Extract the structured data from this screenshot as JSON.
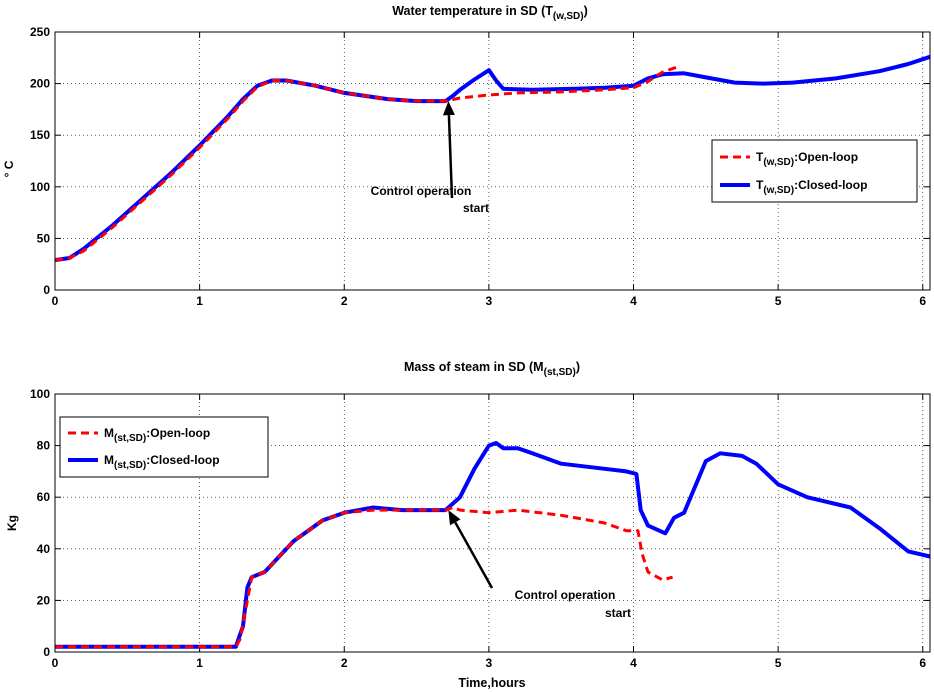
{
  "chart_data": [
    {
      "type": "line",
      "title": "Water temperature in SD (T",
      "title_sub": "(w,SD)",
      "title_end": ")",
      "xlabel": "",
      "ylabel": "° C",
      "xlim": [
        0,
        6.05
      ],
      "ylim": [
        0,
        250
      ],
      "xticks": [
        0,
        1,
        2,
        3,
        4,
        5,
        6
      ],
      "yticks": [
        0,
        50,
        100,
        150,
        200,
        250
      ],
      "grid": true,
      "legend_position": "right",
      "series": [
        {
          "name": "T",
          "name_sub": "(w,SD)",
          "name_rest": ":Open-loop",
          "color": "#ff0000",
          "style": "dashed",
          "x": [
            0,
            0.1,
            0.2,
            0.4,
            0.6,
            0.8,
            1.0,
            1.2,
            1.3,
            1.4,
            1.5,
            1.6,
            1.8,
            2.0,
            2.3,
            2.5,
            2.7,
            2.8,
            3.0,
            3.2,
            3.5,
            3.8,
            4.0,
            4.1,
            4.2,
            4.3
          ],
          "y": [
            29,
            31,
            38,
            61,
            86,
            111,
            138,
            167,
            183,
            197,
            203,
            203,
            198,
            191,
            185,
            183,
            183,
            186,
            189,
            191,
            192,
            194,
            196,
            202,
            211,
            216
          ]
        },
        {
          "name": "T",
          "name_sub": "(w,SD)",
          "name_rest": ":Closed-loop",
          "color": "#0000ff",
          "style": "solid",
          "x": [
            0,
            0.1,
            0.2,
            0.4,
            0.6,
            0.8,
            1.0,
            1.2,
            1.3,
            1.4,
            1.5,
            1.6,
            1.8,
            2.0,
            2.3,
            2.5,
            2.7,
            2.75,
            2.8,
            2.9,
            3.0,
            3.05,
            3.1,
            3.3,
            3.6,
            3.8,
            4.0,
            4.1,
            4.2,
            4.35,
            4.5,
            4.7,
            4.9,
            5.1,
            5.4,
            5.7,
            5.9,
            6.05
          ],
          "y": [
            29,
            31,
            40,
            63,
            88,
            113,
            140,
            169,
            185,
            198,
            203,
            203,
            198,
            191,
            185,
            183,
            183,
            188,
            194,
            204,
            213,
            203,
            195,
            194,
            195,
            196,
            198,
            205,
            209,
            210,
            206,
            201,
            200,
            201,
            205,
            212,
            219,
            226
          ]
        }
      ],
      "annotation": {
        "lines": [
          "Control operation",
          "start"
        ],
        "arrow_tip": [
          2.72,
          183
        ]
      }
    },
    {
      "type": "line",
      "title": "Mass of steam in SD (M",
      "title_sub": "(st,SD)",
      "title_end": ")",
      "xlabel": "Time,hours",
      "ylabel": "Kg",
      "xlim": [
        0,
        6.05
      ],
      "ylim": [
        0,
        100
      ],
      "xticks": [
        0,
        1,
        2,
        3,
        4,
        5,
        6
      ],
      "yticks": [
        0,
        20,
        40,
        60,
        80,
        100
      ],
      "grid": true,
      "legend_position": "top-left",
      "series": [
        {
          "name": "M",
          "name_sub": "(st,SD)",
          "name_rest": ":Open-loop",
          "color": "#ff0000",
          "style": "dashed",
          "x": [
            0,
            1.25,
            1.28,
            1.33,
            1.36,
            1.45,
            1.55,
            1.65,
            1.75,
            1.85,
            2.0,
            2.2,
            2.4,
            2.6,
            2.7,
            2.75,
            2.8,
            3.0,
            3.2,
            3.5,
            3.8,
            3.95,
            4.03,
            4.06,
            4.1,
            4.2,
            4.27
          ],
          "y": [
            2,
            2,
            5,
            20,
            29,
            31,
            37,
            43,
            47,
            51,
            54,
            55,
            55,
            55,
            55,
            56,
            55,
            54,
            55,
            53,
            50,
            47,
            47,
            38,
            31,
            28,
            29
          ]
        },
        {
          "name": "M",
          "name_sub": "(st,SD)",
          "name_rest": ":Closed-loop",
          "color": "#0000ff",
          "style": "solid",
          "x": [
            0,
            1.25,
            1.3,
            1.33,
            1.36,
            1.45,
            1.55,
            1.65,
            1.75,
            1.85,
            2.0,
            2.2,
            2.4,
            2.6,
            2.7,
            2.8,
            2.9,
            3.0,
            3.05,
            3.1,
            3.2,
            3.3,
            3.5,
            3.8,
            3.95,
            4.02,
            4.05,
            4.1,
            4.22,
            4.28,
            4.35,
            4.5,
            4.6,
            4.75,
            4.85,
            5.0,
            5.2,
            5.5,
            5.7,
            5.9,
            6.05
          ],
          "y": [
            2,
            2,
            10,
            25,
            29,
            31,
            37,
            43,
            47,
            51,
            54,
            56,
            55,
            55,
            55,
            60,
            71,
            80,
            81,
            79,
            79,
            77,
            73,
            71,
            70,
            69,
            55,
            49,
            46,
            52,
            54,
            74,
            77,
            76,
            73,
            65,
            60,
            56,
            48,
            39,
            37
          ]
        }
      ],
      "annotation": {
        "lines": [
          "Control operation",
          "start"
        ],
        "arrow_tip": [
          2.72,
          55
        ]
      }
    }
  ]
}
